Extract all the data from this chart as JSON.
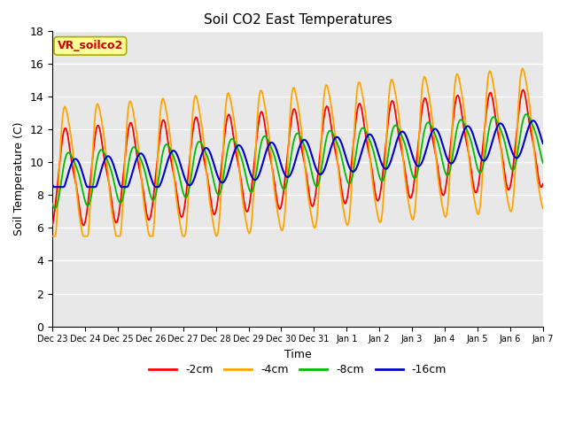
{
  "title": "Soil CO2 East Temperatures",
  "xlabel": "Time",
  "ylabel": "Soil Temperature (C)",
  "ylim": [
    0,
    18
  ],
  "yticks": [
    0,
    2,
    4,
    6,
    8,
    10,
    12,
    14,
    16,
    18
  ],
  "colors": {
    "-2cm": "#ff0000",
    "-4cm": "#ffa500",
    "-8cm": "#00bb00",
    "-16cm": "#0000cc"
  },
  "legend_label": "VR_soilco2",
  "legend_label_color": "#cc0000",
  "legend_box_color": "#ffff99",
  "plot_bg_color": "#e8e8e8",
  "fig_bg_color": "#ffffff",
  "x_labels": [
    "Dec 23",
    "Dec 24",
    "Dec 25",
    "Dec 26",
    "Dec 27",
    "Dec 28",
    "Dec 29",
    "Dec 30",
    "Dec 31",
    "Jan 1",
    "Jan 2",
    "Jan 3",
    "Jan 4",
    "Jan 5",
    "Jan 6",
    "Jan 7"
  ],
  "n_points": 480,
  "figsize": [
    6.4,
    4.8
  ],
  "dpi": 100
}
